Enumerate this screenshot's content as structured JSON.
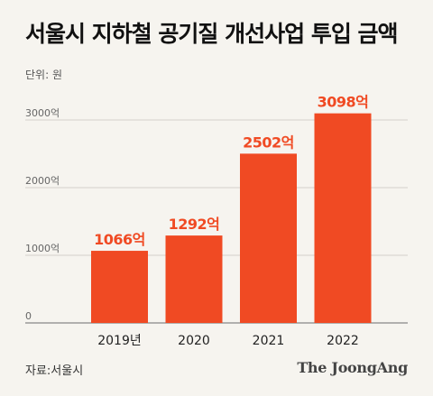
{
  "header": {
    "title": "서울시 지하철 공기질 개선사업 투입 금액",
    "unit": "단위: 원"
  },
  "chart_data": {
    "type": "bar",
    "categories": [
      "2019년",
      "2020",
      "2021",
      "2022"
    ],
    "values": [
      1066,
      1292,
      2502,
      3098
    ],
    "value_labels": [
      "1066억",
      "1292억",
      "2502억",
      "3098억"
    ],
    "yticks": [
      {
        "value": 0,
        "label": "0"
      },
      {
        "value": 1000,
        "label": "1000억"
      },
      {
        "value": 2000,
        "label": "2000억"
      },
      {
        "value": 3000,
        "label": "3000억"
      }
    ],
    "ylim": [
      0,
      3000
    ],
    "grid": true,
    "bar_color": "#f04a23",
    "label_color": "#f04a23"
  },
  "footer": {
    "source": "자료:서울시",
    "brand": "The JoongAng"
  }
}
